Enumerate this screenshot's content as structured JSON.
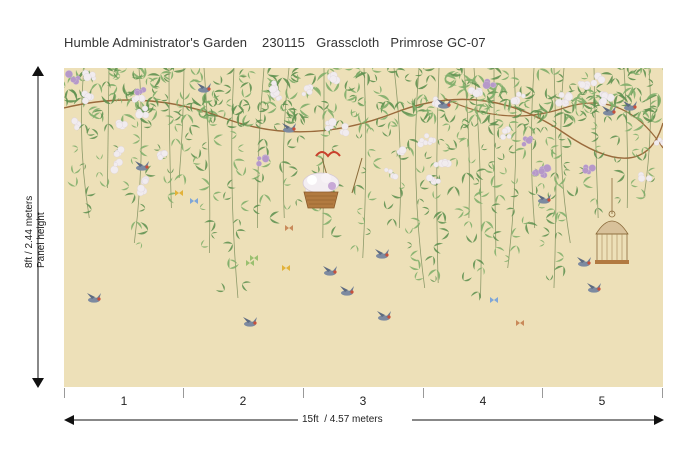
{
  "title": {
    "collection": "Humble Administrator's Garden",
    "code": "230115",
    "material": "Grasscloth",
    "colorway": "Primrose GC-07"
  },
  "mural": {
    "background_color": "#ede0b8",
    "leaf_color": "#7fae6a",
    "leaf_dark": "#5f9150",
    "flower_color": "#f1ecef",
    "wisteria_color": "#b698c9"
  },
  "dimensions": {
    "height_label": "Panel height",
    "height_value": "8ft / 2.44 meters",
    "width_value": "15ft  / 4.57 meters"
  },
  "panels": [
    "1",
    "2",
    "3",
    "4",
    "5"
  ]
}
